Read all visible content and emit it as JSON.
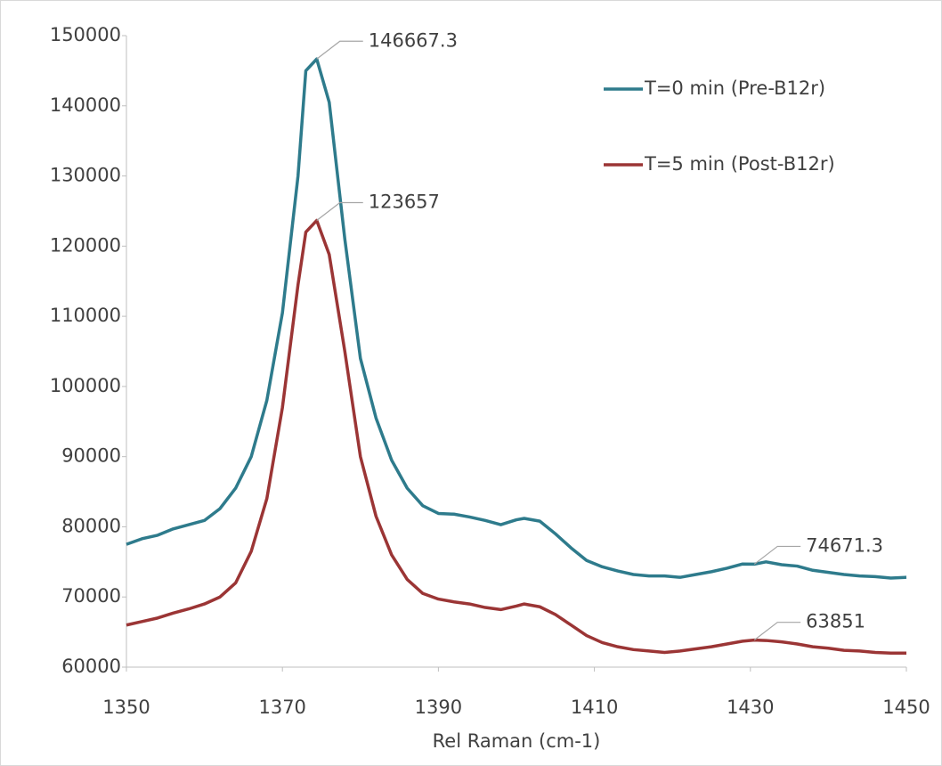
{
  "chart_data": {
    "type": "line",
    "x_label": "Rel Raman (cm-1)",
    "x": [
      1350,
      1352,
      1354,
      1356,
      1358,
      1360,
      1362,
      1364,
      1366,
      1368,
      1370,
      1372,
      1373,
      1374.4,
      1376,
      1378,
      1380,
      1382,
      1384,
      1386,
      1388,
      1390,
      1392,
      1394,
      1396,
      1398,
      1400,
      1401,
      1403,
      1405,
      1407,
      1409,
      1411,
      1413,
      1415,
      1417,
      1419,
      1421,
      1423,
      1425,
      1427,
      1429,
      1430.5,
      1432,
      1434,
      1436,
      1438,
      1440,
      1442,
      1444,
      1446,
      1448,
      1450
    ],
    "series": [
      {
        "name": "T=0 min (Pre-B12r)",
        "color": "#2e7b8c",
        "values": [
          77500,
          78300,
          78800,
          79700,
          80300,
          80900,
          82600,
          85500,
          90000,
          98000,
          110500,
          130000,
          145000,
          146667.3,
          140500,
          121000,
          104000,
          95500,
          89500,
          85500,
          83000,
          81900,
          81800,
          81400,
          80900,
          80300,
          81000,
          81200,
          80800,
          79000,
          77000,
          75200,
          74300,
          73700,
          73200,
          73000,
          73000,
          72800,
          73200,
          73600,
          74100,
          74700,
          74671.3,
          75000,
          74600,
          74400,
          73800,
          73500,
          73200,
          73000,
          72900,
          72700,
          72800
        ],
        "value_labels": [
          null,
          null,
          null,
          null,
          null,
          null,
          null,
          null,
          null,
          null,
          null,
          null,
          null,
          "146667.3",
          null,
          null,
          null,
          null,
          null,
          null,
          null,
          null,
          null,
          null,
          null,
          null,
          null,
          null,
          null,
          null,
          null,
          null,
          null,
          null,
          null,
          null,
          null,
          null,
          null,
          null,
          null,
          null,
          "74671.3",
          null,
          null,
          null,
          null,
          null,
          null,
          null,
          null,
          null,
          null
        ]
      },
      {
        "name": "T=5 min (Post-B12r)",
        "color": "#9b3535",
        "values": [
          66000,
          66500,
          67000,
          67700,
          68300,
          69000,
          70000,
          72000,
          76500,
          84000,
          97000,
          114500,
          122000,
          123657,
          118800,
          105000,
          90000,
          81500,
          76000,
          72500,
          70500,
          69700,
          69300,
          69000,
          68500,
          68200,
          68700,
          69000,
          68600,
          67500,
          66000,
          64500,
          63500,
          62900,
          62500,
          62300,
          62100,
          62300,
          62600,
          62900,
          63300,
          63700,
          63851,
          63800,
          63600,
          63300,
          62900,
          62700,
          62400,
          62300,
          62100,
          62000,
          62000
        ],
        "value_labels": [
          null,
          null,
          null,
          null,
          null,
          null,
          null,
          null,
          null,
          null,
          null,
          null,
          null,
          "123657",
          null,
          null,
          null,
          null,
          null,
          null,
          null,
          null,
          null,
          null,
          null,
          null,
          null,
          null,
          null,
          null,
          null,
          null,
          null,
          null,
          null,
          null,
          null,
          null,
          null,
          null,
          null,
          null,
          "63851",
          null,
          null,
          null,
          null,
          null,
          null,
          null,
          null,
          null,
          null
        ]
      }
    ],
    "xlim": [
      1350,
      1450
    ],
    "xticks": [
      1350,
      1370,
      1390,
      1410,
      1430,
      1450
    ],
    "ylim": [
      60000,
      150000
    ],
    "yticks": [
      60000,
      70000,
      80000,
      90000,
      100000,
      110000,
      120000,
      130000,
      140000,
      150000
    ],
    "grid": false,
    "legend": "top-right"
  }
}
